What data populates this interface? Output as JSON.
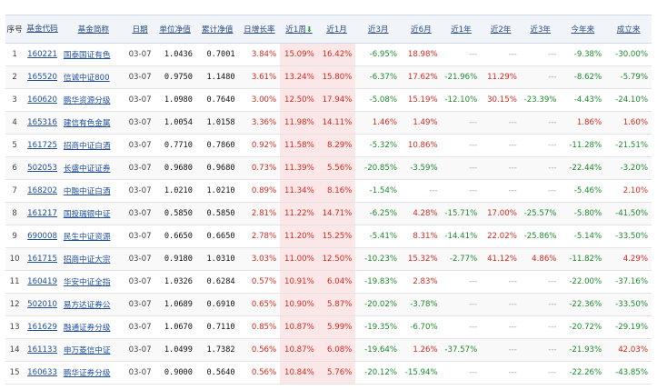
{
  "headers": {
    "idx": "序号",
    "code": "基金代码",
    "name": "基金简称",
    "date": "日期",
    "unit_nav": "单位净值",
    "acc_nav": "累计净值",
    "daily": "日增长率",
    "w1": "近1周",
    "m1": "近1月",
    "m3": "近3月",
    "m6": "近6月",
    "y1": "近1年",
    "y2": "近2年",
    "y3": "近3年",
    "ytd": "今年来",
    "since": "成立来",
    "sort_icon": "sort-down-arrow-icon"
  },
  "colors": {
    "positive": "#d52a1e",
    "negative": "#1e8a2e",
    "link": "#1f4e9c"
  },
  "rows": [
    {
      "idx": "1",
      "code": "160221",
      "name": "国泰国证有色",
      "date": "03-07",
      "nav": "1.0436",
      "acc": "0.7001",
      "d": "3.84%",
      "w1": "15.09%",
      "m1": "16.42%",
      "m3": "-6.95%",
      "m6": "18.98%",
      "y1": "---",
      "y2": "---",
      "y3": "---",
      "ytd": "-9.38%",
      "since": "-30.00%"
    },
    {
      "idx": "2",
      "code": "165520",
      "name": "信诚中证800",
      "date": "03-07",
      "nav": "0.9750",
      "acc": "1.1480",
      "d": "3.61%",
      "w1": "13.24%",
      "m1": "15.80%",
      "m3": "-6.37%",
      "m6": "17.62%",
      "y1": "-21.96%",
      "y2": "11.29%",
      "y3": "---",
      "ytd": "-8.62%",
      "since": "-5.79%"
    },
    {
      "idx": "3",
      "code": "160620",
      "name": "鹏华资源分级",
      "date": "03-07",
      "nav": "1.0980",
      "acc": "0.7640",
      "d": "3.00%",
      "w1": "12.50%",
      "m1": "17.94%",
      "m3": "-5.08%",
      "m6": "15.19%",
      "y1": "-12.10%",
      "y2": "30.15%",
      "y3": "-23.39%",
      "ytd": "-4.43%",
      "since": "-24.10%"
    },
    {
      "idx": "4",
      "code": "165316",
      "name": "建信有色金属",
      "date": "03-07",
      "nav": "1.0054",
      "acc": "1.0158",
      "d": "3.36%",
      "w1": "11.98%",
      "m1": "14.11%",
      "m3": "1.46%",
      "m6": "1.49%",
      "y1": "---",
      "y2": "---",
      "y3": "---",
      "ytd": "1.86%",
      "since": "1.60%"
    },
    {
      "idx": "5",
      "code": "161725",
      "name": "招商中证白酒",
      "date": "03-07",
      "nav": "0.7710",
      "acc": "0.7860",
      "d": "0.92%",
      "w1": "11.58%",
      "m1": "8.29%",
      "m3": "-5.32%",
      "m6": "10.86%",
      "y1": "---",
      "y2": "---",
      "y3": "---",
      "ytd": "-11.28%",
      "since": "-21.51%"
    },
    {
      "idx": "6",
      "code": "502053",
      "name": "长盛中证证券",
      "date": "03-07",
      "nav": "0.9680",
      "acc": "0.9680",
      "d": "0.73%",
      "w1": "11.39%",
      "m1": "5.56%",
      "m3": "-20.85%",
      "m6": "-3.59%",
      "y1": "---",
      "y2": "---",
      "y3": "---",
      "ytd": "-22.44%",
      "since": "-3.20%"
    },
    {
      "idx": "7",
      "code": "168202",
      "name": "中融中证白酒",
      "date": "03-07",
      "nav": "1.0210",
      "acc": "1.0210",
      "d": "0.89%",
      "w1": "11.34%",
      "m1": "8.16%",
      "m3": "-1.54%",
      "m6": "---",
      "y1": "---",
      "y2": "---",
      "y3": "---",
      "ytd": "-5.46%",
      "since": "2.10%"
    },
    {
      "idx": "8",
      "code": "161217",
      "name": "国投瑞银中证",
      "date": "03-07",
      "nav": "0.5850",
      "acc": "0.5850",
      "d": "2.81%",
      "w1": "11.22%",
      "m1": "14.71%",
      "m3": "-6.25%",
      "m6": "4.28%",
      "y1": "-15.71%",
      "y2": "17.00%",
      "y3": "-25.57%",
      "ytd": "-5.80%",
      "since": "-41.50%"
    },
    {
      "idx": "9",
      "code": "690008",
      "name": "民生中证资源",
      "date": "03-07",
      "nav": "0.6650",
      "acc": "0.6650",
      "d": "2.78%",
      "w1": "11.20%",
      "m1": "15.25%",
      "m3": "-5.41%",
      "m6": "8.31%",
      "y1": "-14.41%",
      "y2": "22.02%",
      "y3": "-25.86%",
      "ytd": "-5.14%",
      "since": "-33.50%"
    },
    {
      "idx": "10",
      "code": "161715",
      "name": "招商中证大宗",
      "date": "03-07",
      "nav": "0.9180",
      "acc": "1.0310",
      "d": "3.03%",
      "w1": "11.00%",
      "m1": "12.50%",
      "m3": "-10.23%",
      "m6": "15.32%",
      "y1": "-2.77%",
      "y2": "41.12%",
      "y3": "4.86%",
      "ytd": "-11.82%",
      "since": "4.29%"
    },
    {
      "idx": "11",
      "code": "160419",
      "name": "华安中证全指",
      "date": "03-07",
      "nav": "1.0326",
      "acc": "0.6284",
      "d": "0.57%",
      "w1": "10.91%",
      "m1": "6.04%",
      "m3": "-19.83%",
      "m6": "2.83%",
      "y1": "---",
      "y2": "---",
      "y3": "---",
      "ytd": "-22.00%",
      "since": "-37.16%"
    },
    {
      "idx": "12",
      "code": "502010",
      "name": "易方达证券公",
      "date": "03-07",
      "nav": "1.0689",
      "acc": "0.6910",
      "d": "0.65%",
      "w1": "10.90%",
      "m1": "5.87%",
      "m3": "-20.02%",
      "m6": "-3.78%",
      "y1": "---",
      "y2": "---",
      "y3": "---",
      "ytd": "-22.36%",
      "since": "-33.50%"
    },
    {
      "idx": "13",
      "code": "161629",
      "name": "融通证券分级",
      "date": "03-07",
      "nav": "1.0670",
      "acc": "0.7110",
      "d": "0.85%",
      "w1": "10.87%",
      "m1": "5.99%",
      "m3": "-19.35%",
      "m6": "-6.70%",
      "y1": "---",
      "y2": "---",
      "y3": "---",
      "ytd": "-20.72%",
      "since": "-29.19%"
    },
    {
      "idx": "14",
      "code": "161133",
      "name": "申万菱信中证",
      "date": "03-07",
      "nav": "1.0499",
      "acc": "1.7382",
      "d": "0.56%",
      "w1": "10.87%",
      "m1": "6.08%",
      "m3": "-19.64%",
      "m6": "1.26%",
      "y1": "-37.57%",
      "y2": "---",
      "y3": "---",
      "ytd": "-21.93%",
      "since": "42.03%"
    },
    {
      "idx": "15",
      "code": "160633",
      "name": "鹏华证券分级",
      "date": "03-07",
      "nav": "0.9000",
      "acc": "0.5640",
      "d": "0.56%",
      "w1": "10.84%",
      "m1": "5.76%",
      "m3": "-20.12%",
      "m6": "-15.94%",
      "y1": "---",
      "y2": "---",
      "y3": "---",
      "ytd": "-22.26%",
      "since": "-43.85%"
    }
  ]
}
